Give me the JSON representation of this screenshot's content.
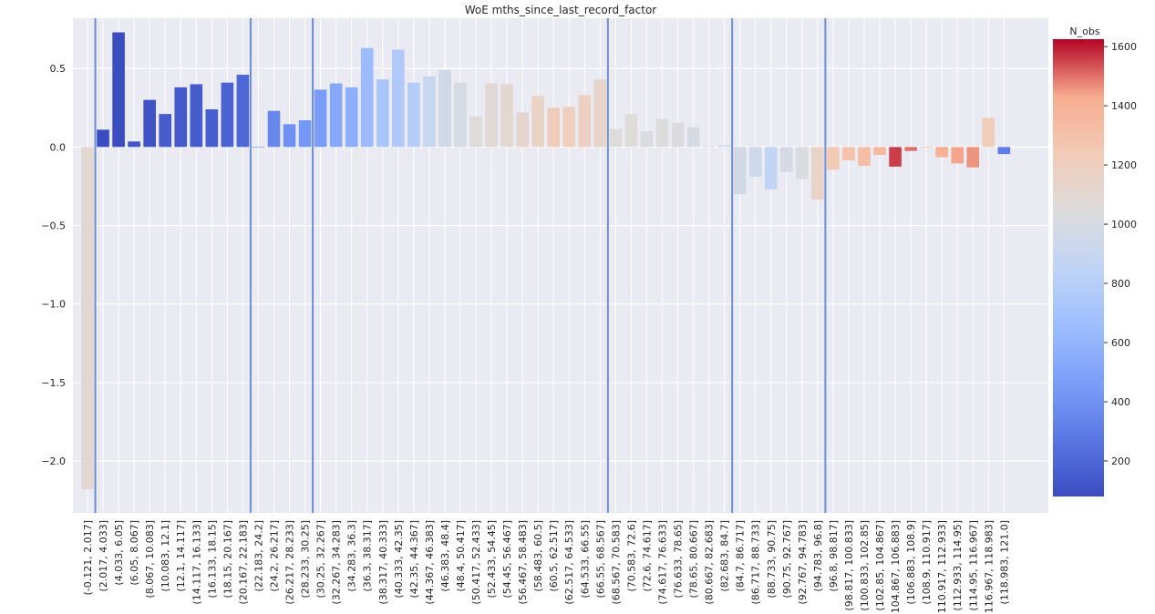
{
  "chart_data": {
    "type": "bar",
    "title": "WoE mths_since_last_record_factor",
    "xlabel": "",
    "ylabel": "",
    "ylim": [
      -2.33,
      0.82
    ],
    "yticks": [
      0.5,
      0.0,
      -0.5,
      -1.0,
      -1.5,
      -2.0
    ],
    "ytick_labels": [
      "0.5",
      "0.0",
      "−0.5",
      "−1.0",
      "−1.5",
      "−2.0"
    ],
    "grid": true,
    "categories": [
      "(-0.121, 2.017]",
      "(2.017, 4.033]",
      "(4.033, 6.05]",
      "(6.05, 8.067]",
      "(8.067, 10.083]",
      "(10.083, 12.1]",
      "(12.1, 14.117]",
      "(14.117, 16.133]",
      "(16.133, 18.15]",
      "(18.15, 20.167]",
      "(20.167, 22.183]",
      "(22.183, 24.2]",
      "(24.2, 26.217]",
      "(26.217, 28.233]",
      "(28.233, 30.25]",
      "(30.25, 32.267]",
      "(32.267, 34.283]",
      "(34.283, 36.3]",
      "(36.3, 38.317]",
      "(38.317, 40.333]",
      "(40.333, 42.35]",
      "(42.35, 44.367]",
      "(44.367, 46.383]",
      "(46.383, 48.4]",
      "(48.4, 50.417]",
      "(50.417, 52.433]",
      "(52.433, 54.45]",
      "(54.45, 56.467]",
      "(56.467, 58.483]",
      "(58.483, 60.5]",
      "(60.5, 62.517]",
      "(62.517, 64.533]",
      "(64.533, 66.55]",
      "(66.55, 68.567]",
      "(68.567, 70.583]",
      "(70.583, 72.6]",
      "(72.6, 74.617]",
      "(74.617, 76.633]",
      "(76.633, 78.65]",
      "(78.65, 80.667]",
      "(80.667, 82.683]",
      "(82.683, 84.7]",
      "(84.7, 86.717]",
      "(86.717, 88.733]",
      "(88.733, 90.75]",
      "(90.75, 92.767]",
      "(92.767, 94.783]",
      "(94.783, 96.8]",
      "(96.8, 98.817]",
      "(98.817, 100.833]",
      "(100.833, 102.85]",
      "(102.85, 104.867]",
      "(104.867, 106.883]",
      "(106.883, 108.9]",
      "(108.9, 110.917]",
      "(110.917, 112.933]",
      "(112.933, 114.95]",
      "(114.95, 116.967]",
      "(116.967, 118.983]",
      "(118.983, 121.0]"
    ],
    "values": [
      -2.18,
      0.11,
      0.73,
      0.035,
      0.3,
      0.21,
      0.38,
      0.4,
      0.24,
      0.41,
      0.46,
      0.0,
      0.23,
      0.145,
      0.17,
      0.365,
      0.405,
      0.38,
      0.63,
      0.43,
      0.62,
      0.41,
      0.45,
      0.49,
      0.41,
      0.195,
      0.405,
      0.4,
      0.22,
      0.325,
      0.25,
      0.255,
      0.33,
      0.43,
      0.115,
      0.21,
      0.1,
      0.18,
      0.155,
      0.125,
      0.005,
      0.01,
      -0.3,
      -0.19,
      -0.27,
      -0.16,
      -0.205,
      -0.335,
      -0.145,
      -0.085,
      -0.12,
      -0.05,
      -0.125,
      -0.025,
      0.0,
      -0.065,
      -0.105,
      -0.13,
      0.185,
      -0.045
    ],
    "n_obs": [
      1100,
      80,
      80,
      110,
      110,
      150,
      140,
      150,
      160,
      180,
      200,
      300,
      350,
      400,
      430,
      450,
      520,
      560,
      650,
      720,
      760,
      780,
      900,
      960,
      1000,
      1060,
      1080,
      1100,
      1120,
      1160,
      1220,
      1210,
      1180,
      1140,
      1050,
      1060,
      1020,
      1040,
      1030,
      1000,
      950,
      900,
      980,
      940,
      860,
      1000,
      1020,
      1160,
      1250,
      1300,
      1320,
      1350,
      1560,
      1500,
      1380,
      1400,
      1440,
      1460,
      1220,
      300
    ],
    "vlines_after_index": [
      0.5,
      10.5,
      14.5,
      33.5,
      41.5,
      47.5
    ],
    "colorbar": {
      "label": "N_obs",
      "range": [
        80,
        1625
      ],
      "ticks": [
        200,
        400,
        600,
        800,
        1000,
        1200,
        1400,
        1600
      ],
      "tick_labels": [
        "200",
        "400",
        "600",
        "800",
        "1000",
        "1200",
        "1400",
        "1600"
      ],
      "colormap": "coolwarm"
    },
    "colors": {
      "vline": "#6b8fd0",
      "grid": "#ffffff",
      "plot_bg": "#eaeaf2"
    }
  }
}
